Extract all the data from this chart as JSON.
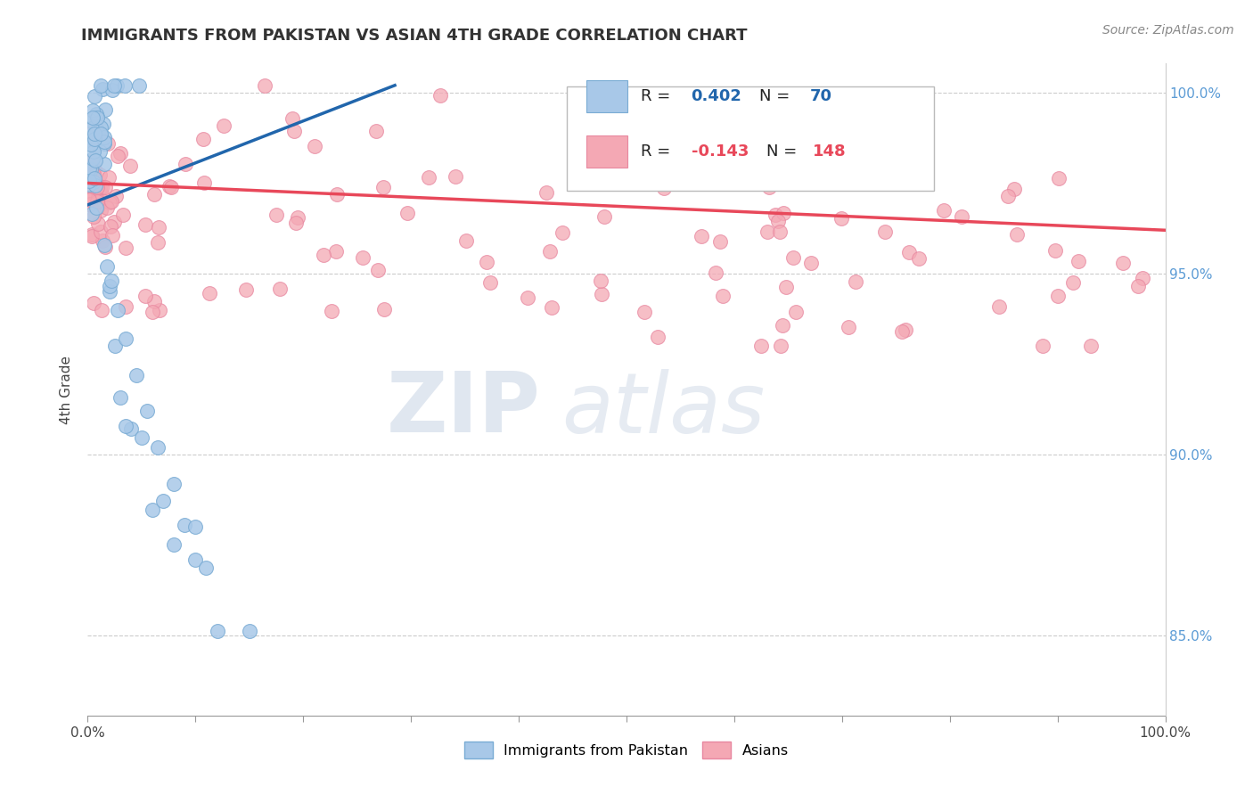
{
  "title": "IMMIGRANTS FROM PAKISTAN VS ASIAN 4TH GRADE CORRELATION CHART",
  "source_text": "Source: ZipAtlas.com",
  "ylabel": "4th Grade",
  "xlim": [
    0.0,
    1.0
  ],
  "ylim": [
    0.828,
    1.008
  ],
  "xticks": [
    0.0,
    0.1,
    0.2,
    0.3,
    0.4,
    0.5,
    0.6,
    0.7,
    0.8,
    0.9,
    1.0
  ],
  "xticklabels_show": [
    "0.0%",
    "",
    "",
    "",
    "",
    "",
    "",
    "",
    "",
    "",
    "100.0%"
  ],
  "yticks": [
    0.85,
    0.9,
    0.95,
    1.0
  ],
  "right_yticklabels": [
    "85.0%",
    "90.0%",
    "95.0%",
    "100.0%"
  ],
  "blue_color": "#a8c8e8",
  "pink_color": "#f4a8b4",
  "blue_edge_color": "#7aacd4",
  "pink_edge_color": "#e888a0",
  "blue_line_color": "#2166ac",
  "pink_line_color": "#e8485a",
  "watermark_zip": "ZIP",
  "watermark_atlas": "atlas",
  "legend_label1": "Immigrants from Pakistan",
  "legend_label2": "Asians",
  "blue_trend_x0": 0.0,
  "blue_trend_y0": 0.969,
  "blue_trend_x1": 0.285,
  "blue_trend_y1": 1.002,
  "pink_trend_x0": 0.0,
  "pink_trend_y0": 0.975,
  "pink_trend_x1": 1.0,
  "pink_trend_y1": 0.962
}
